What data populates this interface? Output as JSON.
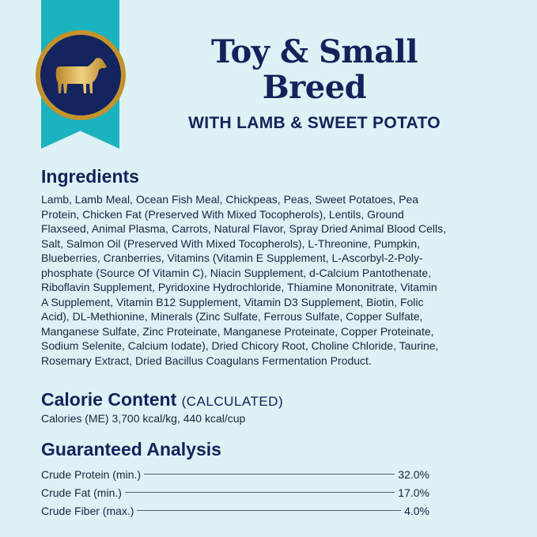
{
  "colors": {
    "background": "#def1f5",
    "navy": "#13225a",
    "teal": "#1bb3bf",
    "gold": "#c9982f"
  },
  "badge": {
    "icon": "lamb-icon"
  },
  "header": {
    "title_line1": "Toy & Small",
    "title_line2": "Breed",
    "subtitle": "WITH LAMB & SWEET POTATO"
  },
  "ingredients": {
    "heading": "Ingredients",
    "lines": [
      "Lamb, Lamb Meal, Ocean Fish Meal, Chickpeas, Peas, Sweet Potatoes, Pea",
      "Protein, Chicken Fat (Preserved With Mixed Tocopherols), Lentils, Ground",
      "Flaxseed, Animal Plasma, Carrots, Natural Flavor, Spray Dried Animal Blood Cells,",
      "Salt, Salmon Oil (Preserved With Mixed Tocopherols), L-Threonine, Pumpkin,",
      "Blueberries, Cranberries, Vitamins (Vitamin E Supplement, L-Ascorbyl-2-Poly-",
      "phosphate (Source Of Vitamin C), Niacin Supplement, d-Calcium Pantothenate,",
      "Riboflavin Supplement, Pyridoxine Hydrochloride, Thiamine Mononitrate, Vitamin",
      "A Supplement, Vitamin B12 Supplement, Vitamin D3 Supplement, Biotin, Folic",
      "Acid), DL-Methionine, Minerals (Zinc Sulfate, Ferrous Sulfate, Copper Sulfate,",
      "Manganese Sulfate, Zinc Proteinate, Manganese Proteinate, Copper Proteinate,",
      "Sodium Selenite, Calcium Iodate), Dried Chicory Root, Choline Chloride, Taurine,",
      "Rosemary Extract, Dried Bacillus Coagulans Fermentation Product."
    ]
  },
  "calorie": {
    "heading": "Calorie Content",
    "qualifier": "(CALCULATED)",
    "text": "Calories (ME) 3,700 kcal/kg, 440 kcal/cup"
  },
  "analysis": {
    "heading": "Guaranteed Analysis",
    "rows": [
      {
        "label": "Crude Protein (min.)",
        "value": "32.0%"
      },
      {
        "label": "Crude Fat (min.)",
        "value": "17.0%"
      },
      {
        "label": "Crude Fiber (max.)",
        "value": "4.0%"
      }
    ]
  }
}
